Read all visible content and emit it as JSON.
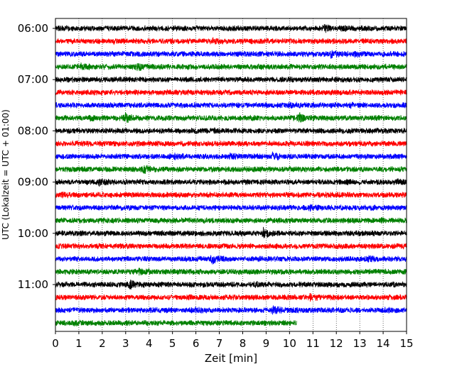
{
  "chart_data": {
    "type": "line",
    "subtype": "helicorder",
    "xlabel": "Zeit  [min]",
    "ylabel": "UTC (Lokalzeit = UTC + 01:00)",
    "xlim": [
      0,
      15
    ],
    "x_ticks": [
      "0",
      "1",
      "2",
      "3",
      "4",
      "5",
      "6",
      "7",
      "8",
      "9",
      "10",
      "11",
      "12",
      "13",
      "14",
      "15"
    ],
    "y_ticks": [
      "06:00",
      "07:00",
      "08:00",
      "09:00",
      "10:00",
      "11:00"
    ],
    "grid": "vertical dotted lines at each minute",
    "trace_interval_min": 15,
    "color_cycle": [
      "#000000",
      "#ff0000",
      "#0000ff",
      "#008000"
    ],
    "traces": [
      {
        "start": "06:00",
        "color": "#000000",
        "end_min": 15,
        "events": [
          {
            "t": 11.5,
            "amp": 2.0
          },
          {
            "t": 12.2,
            "amp": 1.4
          }
        ]
      },
      {
        "start": "06:15",
        "color": "#ff0000",
        "end_min": 15,
        "events": [
          {
            "t": 2.5,
            "amp": 1.3
          },
          {
            "t": 6.7,
            "amp": 1.6
          }
        ]
      },
      {
        "start": "06:30",
        "color": "#0000ff",
        "end_min": 15,
        "events": [
          {
            "t": 11.8,
            "amp": 2.0
          },
          {
            "t": 12.8,
            "amp": 1.6
          }
        ]
      },
      {
        "start": "06:45",
        "color": "#008000",
        "end_min": 15,
        "events": [
          {
            "t": 1.1,
            "amp": 1.8
          },
          {
            "t": 3.5,
            "amp": 2.0
          }
        ]
      },
      {
        "start": "07:00",
        "color": "#000000",
        "end_min": 15,
        "events": [
          {
            "t": 12.2,
            "amp": 1.2
          }
        ]
      },
      {
        "start": "07:15",
        "color": "#ff0000",
        "end_min": 15,
        "events": [
          {
            "t": 4.7,
            "amp": 1.2
          }
        ]
      },
      {
        "start": "07:30",
        "color": "#0000ff",
        "end_min": 15,
        "events": [
          {
            "t": 10.0,
            "amp": 1.7
          },
          {
            "t": 12.6,
            "amp": 1.3
          }
        ]
      },
      {
        "start": "07:45",
        "color": "#008000",
        "end_min": 15,
        "events": [
          {
            "t": 1.5,
            "amp": 1.5
          },
          {
            "t": 3.0,
            "amp": 2.4
          },
          {
            "t": 10.4,
            "amp": 2.6
          }
        ]
      },
      {
        "start": "08:00",
        "color": "#000000",
        "end_min": 15,
        "events": [
          {
            "t": 6.8,
            "amp": 1.5
          },
          {
            "t": 13.8,
            "amp": 1.3
          }
        ]
      },
      {
        "start": "08:15",
        "color": "#ff0000",
        "end_min": 15,
        "events": [
          {
            "t": 10.0,
            "amp": 1.2
          }
        ]
      },
      {
        "start": "08:30",
        "color": "#0000ff",
        "end_min": 15,
        "events": [
          {
            "t": 5.1,
            "amp": 1.5
          },
          {
            "t": 7.5,
            "amp": 1.6
          },
          {
            "t": 9.3,
            "amp": 2.0
          }
        ]
      },
      {
        "start": "08:45",
        "color": "#008000",
        "end_min": 15,
        "events": [
          {
            "t": 1.0,
            "amp": 1.5
          },
          {
            "t": 3.8,
            "amp": 2.2
          }
        ]
      },
      {
        "start": "09:00",
        "color": "#000000",
        "end_min": 15,
        "events": [
          {
            "t": 1.9,
            "amp": 2.0
          },
          {
            "t": 14.6,
            "amp": 1.6
          }
        ]
      },
      {
        "start": "09:15",
        "color": "#ff0000",
        "end_min": 15,
        "events": [
          {
            "t": 0.3,
            "amp": 1.5
          }
        ]
      },
      {
        "start": "09:30",
        "color": "#0000ff",
        "end_min": 15,
        "events": [
          {
            "t": 10.9,
            "amp": 1.6
          },
          {
            "t": 13.5,
            "amp": 1.3
          }
        ]
      },
      {
        "start": "09:45",
        "color": "#008000",
        "end_min": 15,
        "events": [
          {
            "t": 13.9,
            "amp": 1.3
          }
        ]
      },
      {
        "start": "10:00",
        "color": "#000000",
        "end_min": 15,
        "events": [
          {
            "t": 8.9,
            "amp": 2.6
          },
          {
            "t": 7.8,
            "amp": 1.3
          }
        ]
      },
      {
        "start": "10:15",
        "color": "#ff0000",
        "end_min": 15,
        "events": [
          {
            "t": 12.0,
            "amp": 1.2
          }
        ]
      },
      {
        "start": "10:30",
        "color": "#0000ff",
        "end_min": 15,
        "events": [
          {
            "t": 6.7,
            "amp": 2.6
          },
          {
            "t": 13.4,
            "amp": 1.6
          }
        ]
      },
      {
        "start": "10:45",
        "color": "#008000",
        "end_min": 15,
        "events": [
          {
            "t": 3.6,
            "amp": 1.8
          }
        ]
      },
      {
        "start": "11:00",
        "color": "#000000",
        "end_min": 15,
        "events": [
          {
            "t": 3.2,
            "amp": 2.8
          },
          {
            "t": 8.5,
            "amp": 1.4
          }
        ]
      },
      {
        "start": "11:15",
        "color": "#ff0000",
        "end_min": 15,
        "events": [
          {
            "t": 10.9,
            "amp": 1.6
          }
        ]
      },
      {
        "start": "11:30",
        "color": "#0000ff",
        "end_min": 15,
        "events": [
          {
            "t": 9.3,
            "amp": 2.2
          },
          {
            "t": 5.9,
            "amp": 1.4
          },
          {
            "t": 14.0,
            "amp": 1.5
          }
        ]
      },
      {
        "start": "11:45",
        "color": "#008000",
        "end_min": 10.3,
        "events": [
          {
            "t": 0.8,
            "amp": 1.3
          },
          {
            "t": 2.2,
            "amp": 1.2
          }
        ]
      }
    ]
  }
}
